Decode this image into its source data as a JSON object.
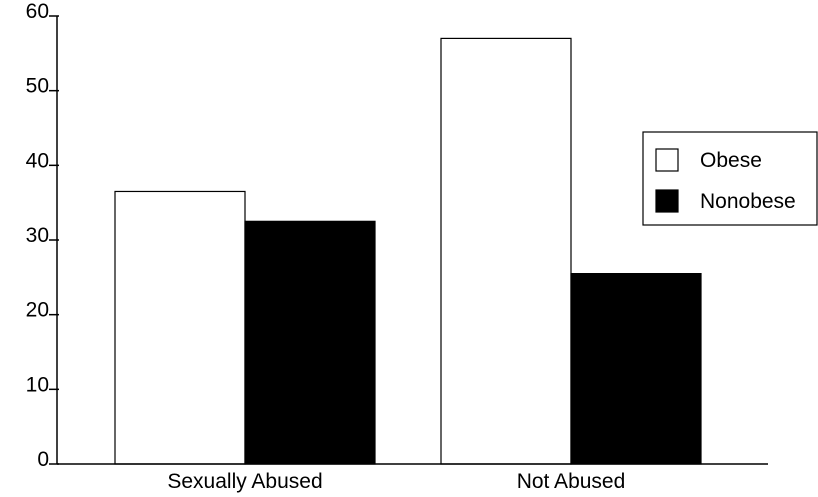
{
  "chart_data": {
    "type": "bar",
    "categories": [
      "Sexually Abused",
      "Not Abused"
    ],
    "series": [
      {
        "name": "Obese",
        "values": [
          36.5,
          57
        ],
        "color": "#ffffff"
      },
      {
        "name": "Nonobese",
        "values": [
          32.5,
          25.5
        ],
        "color": "#000000"
      }
    ],
    "yticks": [
      "0",
      "10",
      "20",
      "30",
      "40",
      "50",
      "60"
    ],
    "ylim": [
      0,
      60
    ],
    "grid": false,
    "legend_position": "right",
    "title": "",
    "xlabel": "",
    "ylabel": ""
  }
}
